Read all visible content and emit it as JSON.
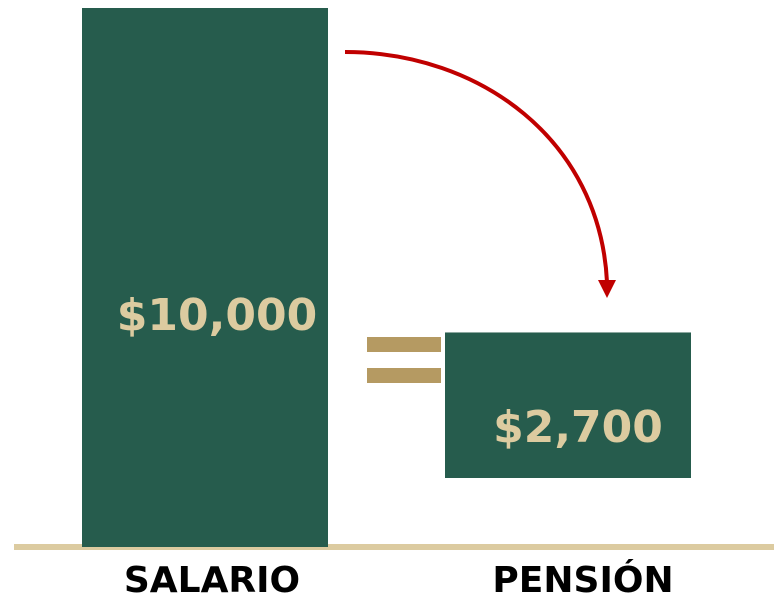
{
  "chart_data": {
    "type": "bar",
    "categories": [
      "SALARIO",
      "PENSIÓN"
    ],
    "values": [
      10000,
      2700
    ],
    "value_labels": [
      "$10,000",
      "$2,700"
    ],
    "color": "#265c4d"
  }
}
